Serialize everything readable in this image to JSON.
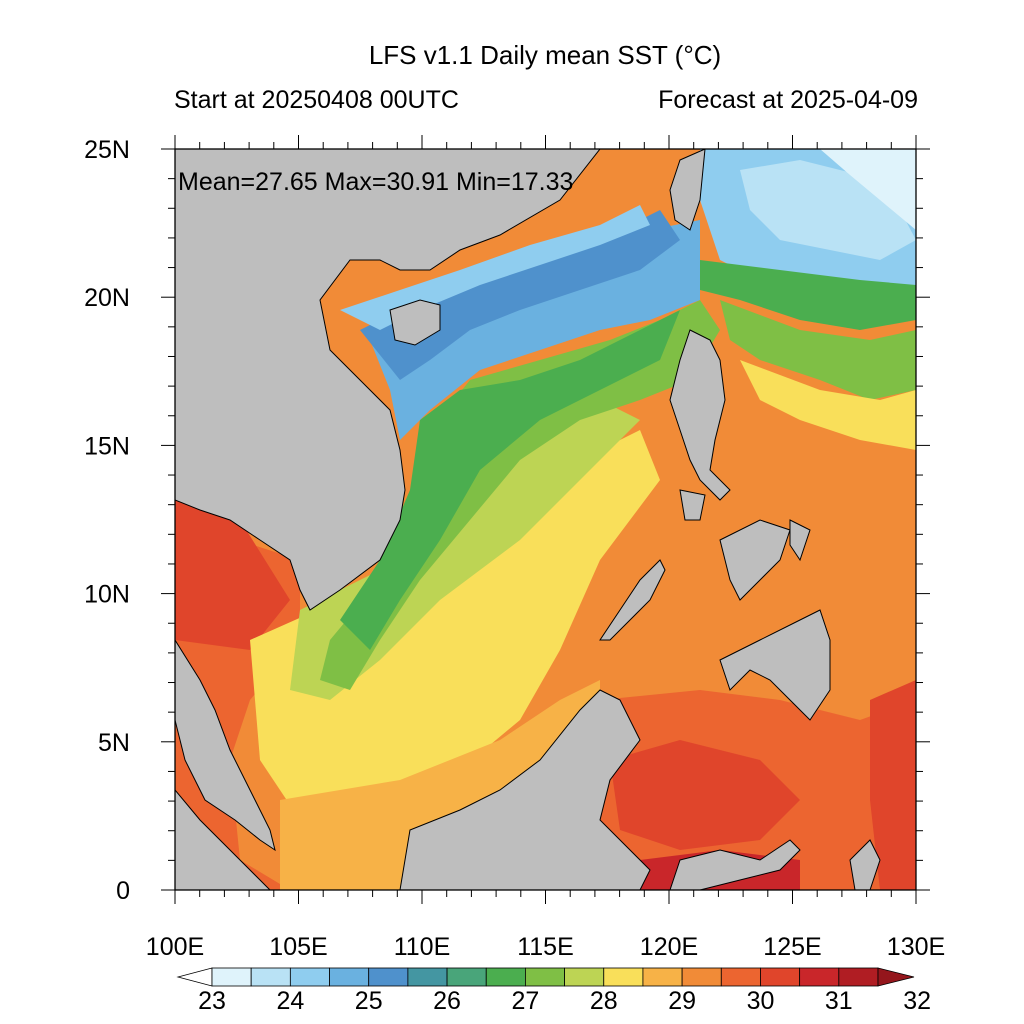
{
  "title": "LFS v1.1 Daily mean SST (°C)",
  "subtitle_left": "Start at 20250408 00UTC",
  "subtitle_right": "Forecast at 2025-04-09",
  "stats": "Mean=27.65  Max=30.91  Min=17.33",
  "map": {
    "region": "South China Sea",
    "land_color": "#bebebe",
    "lon_range": [
      100,
      130
    ],
    "lat_range": [
      0,
      25
    ]
  },
  "x_ticks": [
    "100E",
    "105E",
    "110E",
    "115E",
    "120E",
    "125E",
    "130E"
  ],
  "y_ticks": [
    "0",
    "5N",
    "10N",
    "15N",
    "20N",
    "25N"
  ],
  "colorbar": {
    "labels": [
      "23",
      "24",
      "25",
      "26",
      "27",
      "28",
      "29",
      "30",
      "31",
      "32"
    ],
    "colors": [
      "#ffffff",
      "#dff3fb",
      "#b9e2f5",
      "#8fcdef",
      "#6ab1e0",
      "#4f91cc",
      "#4496a2",
      "#49a57a",
      "#4bae4f",
      "#7fbf45",
      "#bdd454",
      "#f9df5a",
      "#f7b247",
      "#f18b37",
      "#ec6530",
      "#e0452b",
      "#c9262a",
      "#b01d23",
      "#94161c"
    ]
  }
}
